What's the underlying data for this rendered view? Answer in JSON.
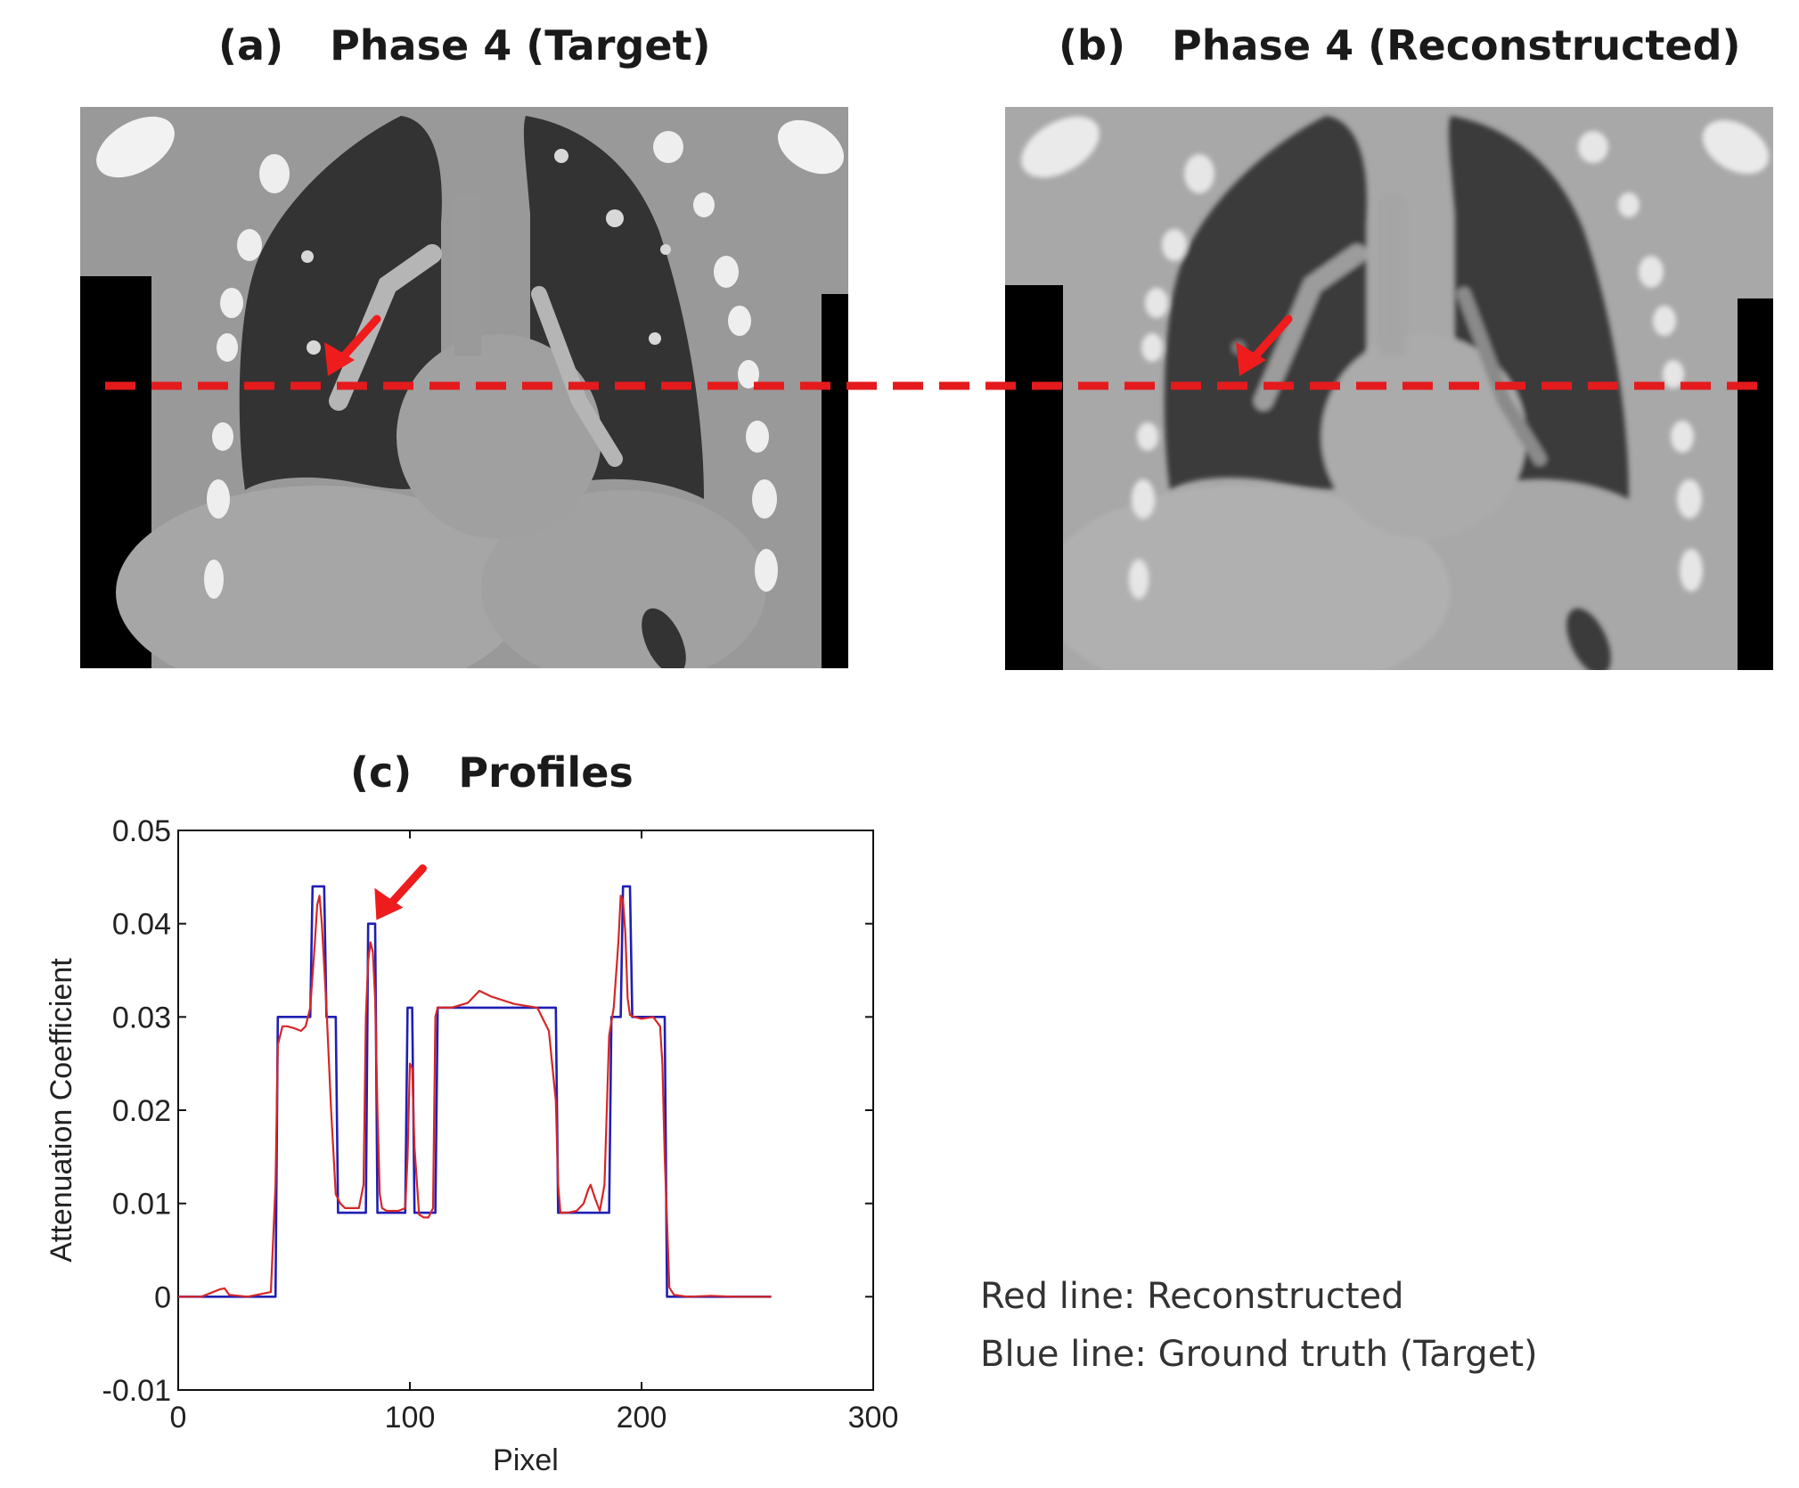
{
  "panels": {
    "a": {
      "label": "(a)",
      "title": "Phase 4 (Target)"
    },
    "b": {
      "label": "(b)",
      "title": "Phase 4 (Reconstructed)"
    },
    "c": {
      "label": "(c)",
      "title": "Profiles"
    }
  },
  "legend": {
    "red": "Red line: Reconstructed",
    "blue": "Blue line: Ground truth (Target)"
  },
  "colors": {
    "profile_line": "#e41a1c",
    "reconstructed": "#d62728",
    "ground_truth": "#1f1fb4",
    "arrow": "#ee1c1c"
  },
  "chart_data": {
    "type": "line",
    "title": "(c) Profiles",
    "xlabel": "Pixel",
    "ylabel": "Attenuation Coefficient",
    "xlim": [
      0,
      300
    ],
    "ylim": [
      -0.01,
      0.05
    ],
    "xticks": [
      0,
      100,
      200,
      300
    ],
    "xtick_labels": [
      "0",
      "100",
      "200",
      "300"
    ],
    "yticks": [
      -0.01,
      0,
      0.01,
      0.02,
      0.03,
      0.04,
      0.05
    ],
    "ytick_labels": [
      "-0.01",
      "0",
      "0.01",
      "0.02",
      "0.03",
      "0.04",
      "0.05"
    ],
    "grid": false,
    "annotation": {
      "type": "arrow",
      "points_to": [
        84,
        0.04
      ]
    },
    "series": [
      {
        "name": "Reconstructed",
        "color": "#d62728",
        "x": [
          0,
          10,
          18,
          20,
          22,
          30,
          40,
          42,
          43,
          45,
          47,
          50,
          53,
          55,
          57,
          59,
          60,
          61,
          62,
          64,
          66,
          68,
          70,
          72,
          75,
          78,
          80,
          81,
          82,
          83,
          84,
          85,
          86,
          87,
          88,
          90,
          95,
          98,
          99,
          100,
          101,
          102,
          104,
          106,
          108,
          110,
          111,
          112,
          114,
          118,
          125,
          130,
          135,
          140,
          145,
          150,
          155,
          160,
          163,
          164,
          165,
          166,
          168,
          172,
          175,
          177,
          178,
          180,
          182,
          184,
          186,
          188,
          190,
          191,
          192,
          193,
          194,
          195,
          197,
          200,
          205,
          208,
          209,
          210,
          212,
          214,
          220,
          230,
          240,
          256
        ],
        "y": [
          0.0,
          0.0,
          0.0008,
          0.0009,
          0.0002,
          0.0,
          0.0005,
          0.012,
          0.027,
          0.029,
          0.029,
          0.0288,
          0.0285,
          0.029,
          0.031,
          0.038,
          0.042,
          0.043,
          0.04,
          0.031,
          0.02,
          0.011,
          0.01,
          0.0095,
          0.0095,
          0.0095,
          0.012,
          0.03,
          0.036,
          0.038,
          0.037,
          0.032,
          0.02,
          0.011,
          0.0095,
          0.0092,
          0.0092,
          0.0095,
          0.015,
          0.025,
          0.0245,
          0.016,
          0.0088,
          0.0085,
          0.0085,
          0.0095,
          0.03,
          0.031,
          0.031,
          0.031,
          0.0315,
          0.0328,
          0.0322,
          0.0318,
          0.0314,
          0.0312,
          0.031,
          0.0285,
          0.021,
          0.012,
          0.009,
          0.009,
          0.009,
          0.0092,
          0.01,
          0.0115,
          0.012,
          0.0105,
          0.0092,
          0.012,
          0.028,
          0.031,
          0.038,
          0.043,
          0.0425,
          0.039,
          0.032,
          0.0302,
          0.03,
          0.0298,
          0.03,
          0.029,
          0.025,
          0.015,
          0.001,
          0.0002,
          0.0,
          0.0001,
          0.0,
          0.0
        ]
      },
      {
        "name": "Ground truth (Target)",
        "color": "#1f1fb4",
        "x": [
          0,
          42,
          43,
          57,
          58,
          63,
          64,
          68,
          69,
          81,
          82,
          85,
          86,
          98,
          99,
          101,
          102,
          111,
          112,
          163,
          164,
          186,
          187,
          191,
          192,
          195,
          196,
          210,
          211,
          256
        ],
        "y": [
          0.0,
          0.0,
          0.03,
          0.03,
          0.044,
          0.044,
          0.03,
          0.03,
          0.009,
          0.009,
          0.04,
          0.04,
          0.009,
          0.009,
          0.031,
          0.031,
          0.009,
          0.009,
          0.031,
          0.031,
          0.009,
          0.009,
          0.03,
          0.03,
          0.044,
          0.044,
          0.03,
          0.03,
          0.0,
          0.0
        ]
      }
    ]
  }
}
